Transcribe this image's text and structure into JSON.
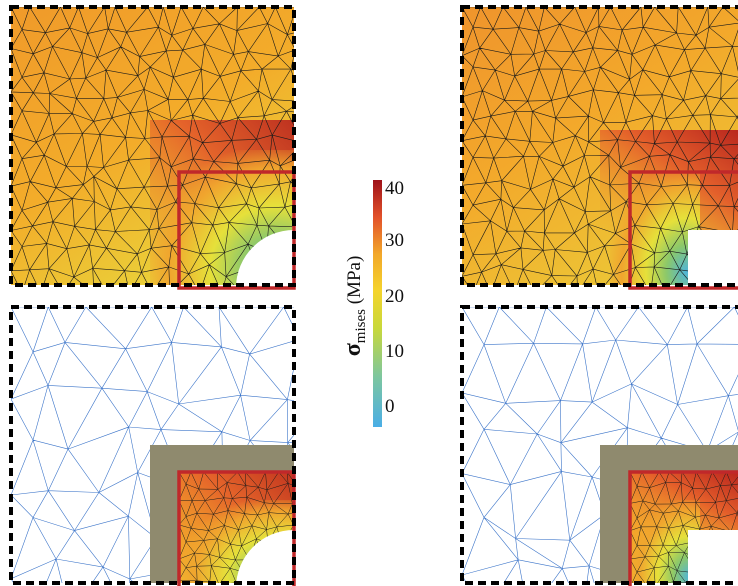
{
  "colorbar": {
    "title_symbol": "σ",
    "title_subscript": "mises",
    "title_unit": " (MPa)",
    "ticks": [
      "40",
      "30",
      "20",
      "10",
      "0"
    ],
    "range": [
      0,
      40
    ]
  },
  "panels": [
    {
      "id": "top-left",
      "fill": "stress-map",
      "hole": "circle"
    },
    {
      "id": "top-right",
      "fill": "stress-map",
      "hole": "rectangle"
    },
    {
      "id": "bottom-left",
      "fill": "mesh-with-zoom",
      "hole": "circle"
    },
    {
      "id": "bottom-right",
      "fill": "mesh-with-zoom",
      "hole": "rectangle"
    }
  ],
  "colors": {
    "frame_dash": "#000000",
    "highlight_box": "#c0282a",
    "zoom_band": "#8f8a6e",
    "mesh_blue": "#3b74c9",
    "mesh_dark": "#1a1a1a"
  }
}
